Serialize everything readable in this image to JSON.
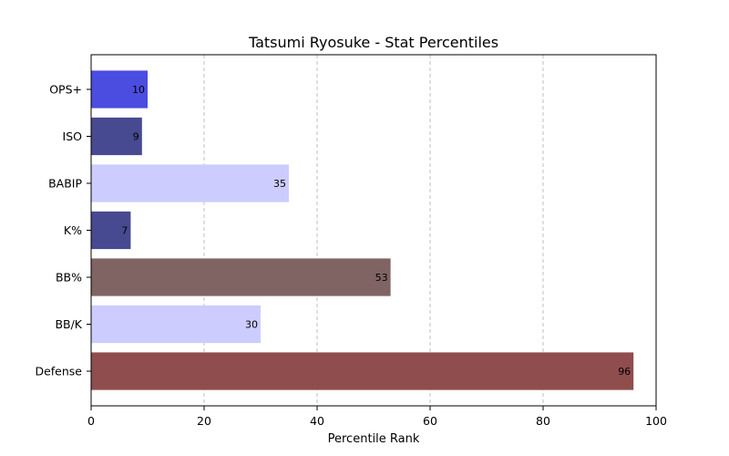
{
  "chart_data": {
    "type": "bar",
    "orientation": "horizontal",
    "title": "Tatsumi Ryosuke - Stat Percentiles",
    "xlabel": "Percentile Rank",
    "ylabel": "",
    "xlim": [
      0,
      100
    ],
    "x_ticks": [
      "0",
      "20",
      "40",
      "60",
      "80",
      "100"
    ],
    "grid": "vertical dashed",
    "categories": [
      "OPS+",
      "ISO",
      "BABIP",
      "K%",
      "BB%",
      "BB/K",
      "Defense"
    ],
    "values": [
      10,
      9,
      35,
      7,
      53,
      30,
      96
    ],
    "value_labels": [
      "10",
      "9",
      "35",
      "7",
      "53",
      "30",
      "96"
    ],
    "colors": [
      "#4b4ce0",
      "#474a90",
      "#ccccfe",
      "#474a90",
      "#806464",
      "#ccccfe",
      "#904d4e"
    ]
  }
}
